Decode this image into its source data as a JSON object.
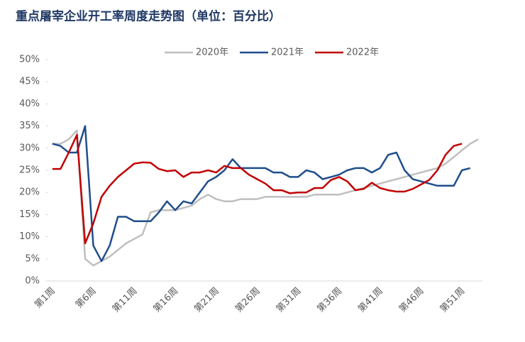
{
  "chart_data": {
    "type": "line",
    "title": "重点屠宰企业开工率周度走势图（单位：百分比）",
    "categories": [
      "第1周",
      null,
      null,
      null,
      null,
      "第6周",
      null,
      null,
      null,
      null,
      "第11周",
      null,
      null,
      null,
      null,
      "第16周",
      null,
      null,
      null,
      null,
      "第21周",
      null,
      null,
      null,
      null,
      "第26周",
      null,
      null,
      null,
      null,
      "第31周",
      null,
      null,
      null,
      null,
      "第36周",
      null,
      null,
      null,
      null,
      "第41周",
      null,
      null,
      null,
      null,
      "第46周",
      null,
      null,
      null,
      null,
      "第51周",
      null,
      null
    ],
    "series": [
      {
        "name": "2020年",
        "color": "#bfbfbf",
        "values": [
          31,
          31,
          32,
          34,
          5,
          3.5,
          4.5,
          5.5,
          7,
          8.5,
          9.5,
          10.5,
          15.5,
          16,
          16,
          16,
          16.5,
          17,
          18.5,
          19.5,
          18.5,
          18,
          18,
          18.5,
          18.5,
          18.5,
          19,
          19,
          19,
          19,
          19,
          19,
          19.5,
          19.5,
          19.5,
          19.5,
          20,
          20.5,
          21,
          21.5,
          22,
          22.5,
          23,
          23.5,
          24,
          24.5,
          25,
          25.5,
          26.5,
          28,
          29.5,
          31,
          32
        ]
      },
      {
        "name": "2021年",
        "color": "#1f4e8c",
        "values": [
          31,
          30.5,
          29,
          29,
          35,
          8,
          4.5,
          8,
          14.5,
          14.5,
          13.5,
          13.5,
          13.5,
          15.5,
          18,
          16,
          18,
          17.5,
          20,
          22.5,
          23.5,
          25,
          27.5,
          25.5,
          25.5,
          25.5,
          25.5,
          24.5,
          24.5,
          23.5,
          23.5,
          25,
          24.5,
          23,
          23.5,
          24,
          25,
          25.5,
          25.5,
          24.5,
          25.5,
          28.5,
          29,
          25,
          23,
          22.5,
          22,
          21.5,
          21.5,
          21.5,
          25,
          25.5,
          null
        ]
      },
      {
        "name": "2022年",
        "color": "#c00000",
        "values": [
          25.3,
          25.3,
          29,
          33,
          8.5,
          13,
          19,
          21.5,
          23.5,
          25,
          26.5,
          26.8,
          26.7,
          25.3,
          24.8,
          25,
          23.5,
          24.5,
          24.5,
          25,
          24.5,
          26,
          25.5,
          25.5,
          24,
          23,
          22,
          20.5,
          20.5,
          19.8,
          20,
          20,
          21,
          21,
          22.8,
          23.5,
          22.5,
          20.5,
          20.8,
          22.2,
          21,
          20.5,
          20.2,
          20.2,
          20.8,
          21.8,
          22.8,
          25,
          28.5,
          30.5,
          31,
          null,
          null
        ]
      }
    ],
    "ylim": [
      0,
      50
    ],
    "yticks": [
      {
        "value": 0,
        "label": "0%"
      },
      {
        "value": 5,
        "label": "5%"
      },
      {
        "value": 10,
        "label": "10%"
      },
      {
        "value": 15,
        "label": "15%"
      },
      {
        "value": 20,
        "label": "20%"
      },
      {
        "value": 25,
        "label": "25%"
      },
      {
        "value": 30,
        "label": "30%"
      },
      {
        "value": 35,
        "label": "35%"
      },
      {
        "value": 40,
        "label": "40%"
      },
      {
        "value": 45,
        "label": "45%"
      },
      {
        "value": 50,
        "label": "50%"
      }
    ],
    "legend": "top"
  }
}
